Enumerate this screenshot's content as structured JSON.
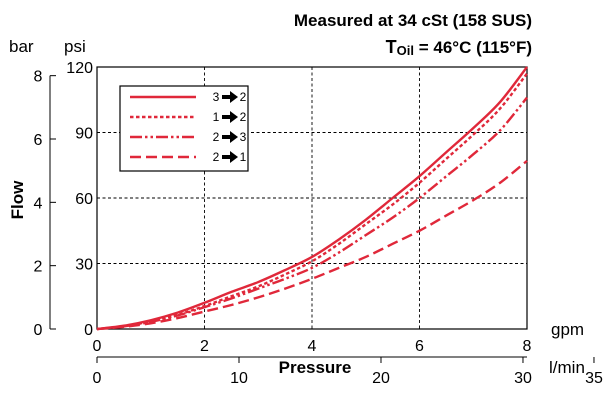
{
  "chart_data": {
    "type": "line",
    "title_line1": "Measured at 34 cSt (158 SUS)",
    "title_line2_prefix": "T",
    "title_line2_sub": "Oil",
    "title_line2_suffix": " = 46°C (115°F)",
    "ylabel": "Flow",
    "xlabel": "Pressure",
    "y_unit_bar": "bar",
    "y_unit_psi": "psi",
    "x_unit_gpm": "gpm",
    "x_unit_lmin": "l/min",
    "y_ticks_bar": [
      "0",
      "2",
      "4",
      "6",
      "8"
    ],
    "y_ticks_psi": [
      "0",
      "30",
      "60",
      "90",
      "120"
    ],
    "x_ticks_gpm": [
      "0",
      "2",
      "4",
      "6",
      "8"
    ],
    "x_ticks_lmin": [
      "0",
      "10",
      "20",
      "30",
      "35"
    ],
    "xlim_gpm": [
      0,
      8
    ],
    "ylim_psi": [
      0,
      120
    ],
    "grid": true,
    "legend_position": "top-left",
    "color": "#e0283a",
    "series": [
      {
        "name_from": "3",
        "name_to": "2",
        "dash": "solid",
        "x": [
          0,
          0.5,
          1,
          1.5,
          2,
          2.5,
          3,
          3.5,
          4,
          4.5,
          5,
          5.5,
          6,
          6.5,
          7,
          7.5,
          8
        ],
        "y": [
          0,
          1.5,
          4,
          7.5,
          12,
          17,
          21.5,
          27,
          33,
          41,
          50,
          60,
          70,
          81,
          92,
          104,
          120
        ]
      },
      {
        "name_from": "1",
        "name_to": "2",
        "dash": "dotted",
        "x": [
          0,
          0.5,
          1,
          1.5,
          2,
          2.5,
          3,
          3.5,
          4,
          4.5,
          5,
          5.5,
          6,
          6.5,
          7,
          7.5,
          8
        ],
        "y": [
          0,
          1.3,
          3.5,
          6.5,
          10.5,
          15,
          19.5,
          25,
          31,
          39,
          48,
          57,
          67,
          78,
          89,
          101,
          117
        ]
      },
      {
        "name_from": "2",
        "name_to": "3",
        "dash": "dashdotdot",
        "x": [
          0,
          0.5,
          1,
          1.5,
          2,
          2.5,
          3,
          3.5,
          4,
          4.5,
          5,
          5.5,
          6,
          6.5,
          7,
          7.5,
          8
        ],
        "y": [
          0,
          1.2,
          3.3,
          6.2,
          10,
          14,
          18.5,
          23,
          28,
          35,
          43,
          51,
          60,
          70,
          80,
          91,
          106
        ]
      },
      {
        "name_from": "2",
        "name_to": "1",
        "dash": "dashed",
        "x": [
          0,
          0.5,
          1,
          1.5,
          2,
          2.5,
          3,
          3.5,
          4,
          4.5,
          5,
          5.5,
          6,
          6.5,
          7,
          7.5,
          8
        ],
        "y": [
          0,
          1,
          2.6,
          5,
          8,
          11,
          14.5,
          18.5,
          23,
          28,
          33,
          39,
          45,
          52,
          59,
          67,
          77
        ]
      }
    ]
  }
}
